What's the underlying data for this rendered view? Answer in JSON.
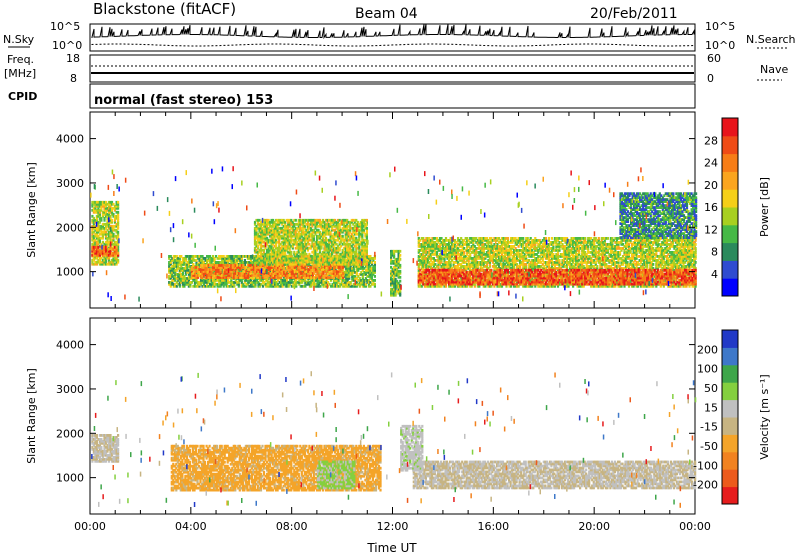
{
  "header": {
    "station": "Blackstone (fitACF)",
    "beam": "Beam 04",
    "date": "20/Feb/2011"
  },
  "noise_panel": {
    "left_label": "N.Sky",
    "right_label": "N.Search",
    "ticks": [
      "10^5",
      "10^0"
    ]
  },
  "freq_panel": {
    "left_label_1": "Freq.",
    "left_label_2": "[MHz]",
    "right_label": "Nave",
    "left_ticks": [
      "18",
      "8"
    ],
    "right_ticks": [
      "60",
      "0"
    ]
  },
  "cpid": {
    "label": "CPID",
    "text": "normal (fast stereo) 153"
  },
  "colors": {
    "power": [
      "#0000ff",
      "#2f4bd0",
      "#2a8a5c",
      "#46b946",
      "#a8d020",
      "#f5cf18",
      "#fba51f",
      "#f77d17",
      "#ef4b16",
      "#e8141b"
    ],
    "velocity": [
      "#2139c7",
      "#3e78c9",
      "#3ea64a",
      "#84d03f",
      "#c0c0c0",
      "#c7b482",
      "#f4a429",
      "#f2821f",
      "#ec5a1c",
      "#e61c1d"
    ],
    "grid_line": "#000000"
  },
  "chart_data": [
    {
      "type": "heatmap",
      "title": "",
      "xlabel": "",
      "ylabel": "Slant Range [km]",
      "x_range_hours": [
        0,
        24
      ],
      "ylim": [
        180,
        4600
      ],
      "y_ticks": [
        "1000",
        "2000",
        "3000",
        "4000"
      ],
      "x_ticks": [
        "00:00",
        "04:00",
        "08:00",
        "12:00",
        "16:00",
        "20:00",
        "00:00"
      ],
      "colorbar": {
        "label": "Power [dB]",
        "ticks": [
          "28",
          "24",
          "20",
          "16",
          "12",
          "8",
          "4"
        ],
        "range": [
          0,
          30
        ]
      },
      "echo_regions": [
        {
          "t_start": 0.05,
          "t_end": 1.1,
          "range_low": 1200,
          "range_high": 2600,
          "value": 14
        },
        {
          "t_start": 0.05,
          "t_end": 1.1,
          "range_low": 1400,
          "range_high": 1620,
          "value": 24
        },
        {
          "t_start": 3.1,
          "t_end": 11.3,
          "range_low": 700,
          "range_high": 1400,
          "value": 12
        },
        {
          "t_start": 4.0,
          "t_end": 10.0,
          "range_low": 900,
          "range_high": 1200,
          "value": 22
        },
        {
          "t_start": 6.5,
          "t_end": 11.0,
          "range_low": 1200,
          "range_high": 2200,
          "value": 14
        },
        {
          "t_start": 11.9,
          "t_end": 12.3,
          "range_low": 500,
          "range_high": 1500,
          "value": 12
        },
        {
          "t_start": 13.0,
          "t_end": 24.0,
          "range_low": 700,
          "range_high": 1800,
          "value": 14
        },
        {
          "t_start": 13.0,
          "t_end": 24.0,
          "range_low": 750,
          "range_high": 1100,
          "value": 25
        },
        {
          "t_start": 21.0,
          "t_end": 24.0,
          "range_low": 1800,
          "range_high": 2800,
          "value": 8
        }
      ]
    },
    {
      "type": "heatmap",
      "title": "",
      "xlabel": "Time UT",
      "ylabel": "Slant Range [km]",
      "x_range_hours": [
        0,
        24
      ],
      "ylim": [
        180,
        4600
      ],
      "y_ticks": [
        "1000",
        "2000",
        "3000",
        "4000"
      ],
      "x_ticks": [
        "00:00",
        "04:00",
        "08:00",
        "12:00",
        "16:00",
        "20:00",
        "00:00"
      ],
      "colorbar": {
        "label": "Velocity [m s⁻¹]",
        "ticks": [
          "200",
          "100",
          "50",
          "15",
          "-15",
          "-50",
          "-100",
          "-200"
        ],
        "range": [
          -250,
          250
        ]
      },
      "echo_regions": [
        {
          "t_start": 0.05,
          "t_end": 1.1,
          "range_low": 1400,
          "range_high": 2000,
          "value": 0
        },
        {
          "t_start": 3.2,
          "t_end": 11.5,
          "range_low": 750,
          "range_high": 1750,
          "value": -70
        },
        {
          "t_start": 9.0,
          "t_end": 10.5,
          "range_low": 800,
          "range_high": 1400,
          "value": 60
        },
        {
          "t_start": 12.8,
          "t_end": 24.0,
          "range_low": 800,
          "range_high": 1400,
          "value": 0
        },
        {
          "t_start": 12.3,
          "t_end": 13.2,
          "range_low": 1200,
          "range_high": 2200,
          "value": 30
        }
      ]
    }
  ]
}
